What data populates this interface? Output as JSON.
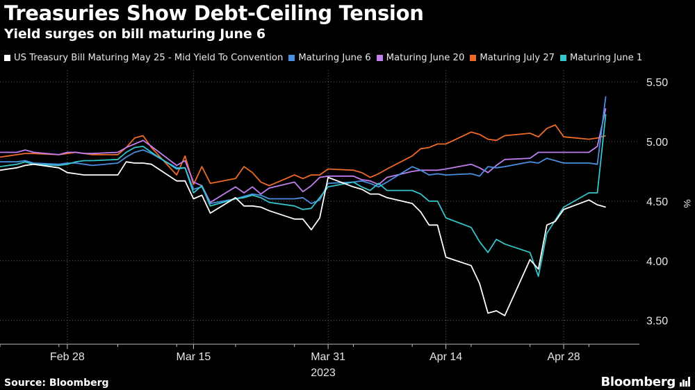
{
  "header": {
    "title": "Treasuries Show Debt-Ceiling Tension",
    "subtitle": "Yield surges on bill maturing June 6"
  },
  "footer": {
    "source": "Source: Bloomberg",
    "brand": "Bloomberg"
  },
  "chart_data": {
    "type": "line",
    "title": "Treasuries Show Debt-Ceiling Tension",
    "subtitle": "Yield surges on bill maturing June 6",
    "xlabel": "2023",
    "ylabel": "%",
    "x_axis_type": "date",
    "xlim": [
      "2023-02-20",
      "2023-05-07"
    ],
    "ylim": [
      3.3,
      5.6
    ],
    "x_ticks": [
      {
        "date": "2023-02-28",
        "label": "Feb 28"
      },
      {
        "date": "2023-03-15",
        "label": "Mar 15"
      },
      {
        "date": "2023-03-31",
        "label": "Mar 31"
      },
      {
        "date": "2023-04-14",
        "label": "Apr 14"
      },
      {
        "date": "2023-04-28",
        "label": "Apr 28"
      }
    ],
    "y_ticks": [
      3.5,
      4.0,
      4.5,
      5.0,
      5.5
    ],
    "y_tick_labels": [
      "3.50",
      "4.00",
      "4.50",
      "5.00",
      "5.50"
    ],
    "grid": {
      "horizontal": true,
      "vertical": true,
      "style": "dotted"
    },
    "y_axis_position": "right",
    "legend_position": "top",
    "x": [
      "2023-02-20",
      "2023-02-21",
      "2023-02-22",
      "2023-02-23",
      "2023-02-24",
      "2023-02-27",
      "2023-02-28",
      "2023-03-01",
      "2023-03-02",
      "2023-03-03",
      "2023-03-06",
      "2023-03-07",
      "2023-03-08",
      "2023-03-09",
      "2023-03-10",
      "2023-03-13",
      "2023-03-14",
      "2023-03-15",
      "2023-03-16",
      "2023-03-17",
      "2023-03-20",
      "2023-03-21",
      "2023-03-22",
      "2023-03-23",
      "2023-03-24",
      "2023-03-27",
      "2023-03-28",
      "2023-03-29",
      "2023-03-30",
      "2023-03-31",
      "2023-04-03",
      "2023-04-04",
      "2023-04-05",
      "2023-04-06",
      "2023-04-07",
      "2023-04-10",
      "2023-04-11",
      "2023-04-12",
      "2023-04-13",
      "2023-04-14",
      "2023-04-17",
      "2023-04-18",
      "2023-04-19",
      "2023-04-20",
      "2023-04-21",
      "2023-04-24",
      "2023-04-25",
      "2023-04-26",
      "2023-04-27",
      "2023-04-28",
      "2023-05-01",
      "2023-05-02",
      "2023-05-03"
    ],
    "series": [
      {
        "name": "US Treasury Bill Maturing May 25 - Mid Yield To Convention",
        "color": "#ffffff",
        "values": [
          4.76,
          4.77,
          4.78,
          4.8,
          4.81,
          4.78,
          4.74,
          4.73,
          4.72,
          4.72,
          4.72,
          4.83,
          4.82,
          4.82,
          4.81,
          4.67,
          4.67,
          4.52,
          4.55,
          4.4,
          4.53,
          4.46,
          4.46,
          4.45,
          4.42,
          4.35,
          4.35,
          4.26,
          4.36,
          4.7,
          4.62,
          4.6,
          4.56,
          4.56,
          4.53,
          4.48,
          4.41,
          4.3,
          4.3,
          4.03,
          3.96,
          3.81,
          3.56,
          3.58,
          3.54,
          4.01,
          3.93,
          4.3,
          4.33,
          4.43,
          4.51,
          4.47,
          4.45
        ]
      },
      {
        "name": "Maturing June 6",
        "color": "#4a90e2",
        "values": [
          4.83,
          4.83,
          4.83,
          4.84,
          4.82,
          4.81,
          4.82,
          4.82,
          4.81,
          4.8,
          4.82,
          4.87,
          4.91,
          4.93,
          4.9,
          4.78,
          4.78,
          4.6,
          4.62,
          4.48,
          4.52,
          4.54,
          4.56,
          4.55,
          4.52,
          4.52,
          4.53,
          4.48,
          4.51,
          4.65,
          4.66,
          4.67,
          4.65,
          4.62,
          4.66,
          4.79,
          4.76,
          4.72,
          4.73,
          4.72,
          4.73,
          4.71,
          4.79,
          4.78,
          4.79,
          4.83,
          4.82,
          4.86,
          4.84,
          4.82,
          4.82,
          4.81,
          5.38
        ]
      },
      {
        "name": "Maturing June 20",
        "color": "#c17ff0",
        "values": [
          4.91,
          4.91,
          4.91,
          4.93,
          4.91,
          4.89,
          4.91,
          4.91,
          4.9,
          4.9,
          4.91,
          4.95,
          4.98,
          5.01,
          4.96,
          4.8,
          4.84,
          4.66,
          4.63,
          4.49,
          4.62,
          4.57,
          4.62,
          4.56,
          4.61,
          4.66,
          4.58,
          4.63,
          4.7,
          4.71,
          4.71,
          4.68,
          4.67,
          4.64,
          4.7,
          4.75,
          4.76,
          4.76,
          4.76,
          4.77,
          4.81,
          4.78,
          4.74,
          4.8,
          4.85,
          4.86,
          4.91,
          4.91,
          4.91,
          4.91,
          4.91,
          4.96,
          5.28
        ]
      },
      {
        "name": "Maturing July 27",
        "color": "#ee6a28",
        "values": [
          4.87,
          4.88,
          4.89,
          4.9,
          4.9,
          4.89,
          4.9,
          4.91,
          4.9,
          4.89,
          4.89,
          4.95,
          5.03,
          5.05,
          4.95,
          4.72,
          4.88,
          4.64,
          4.79,
          4.65,
          4.69,
          4.79,
          4.74,
          4.66,
          4.63,
          4.72,
          4.69,
          4.72,
          4.72,
          4.77,
          4.76,
          4.74,
          4.7,
          4.73,
          4.77,
          4.88,
          4.94,
          4.95,
          4.98,
          4.98,
          5.08,
          5.06,
          5.02,
          5.01,
          5.05,
          5.07,
          5.04,
          5.11,
          5.14,
          5.04,
          5.02,
          5.03,
          5.05
        ]
      },
      {
        "name": "Maturing June 1",
        "color": "#34c6cb",
        "values": [
          4.79,
          4.8,
          4.81,
          4.83,
          4.81,
          4.8,
          4.81,
          4.83,
          4.84,
          4.84,
          4.85,
          4.91,
          4.95,
          4.96,
          4.91,
          4.77,
          4.78,
          4.57,
          4.63,
          4.46,
          4.52,
          4.53,
          4.55,
          4.53,
          4.49,
          4.46,
          4.43,
          4.44,
          4.53,
          4.62,
          4.66,
          4.62,
          4.59,
          4.65,
          4.59,
          4.59,
          4.56,
          4.5,
          4.5,
          4.36,
          4.28,
          4.16,
          4.07,
          4.18,
          4.14,
          4.07,
          3.87,
          4.23,
          4.34,
          4.45,
          4.57,
          4.57,
          5.23
        ]
      }
    ]
  }
}
